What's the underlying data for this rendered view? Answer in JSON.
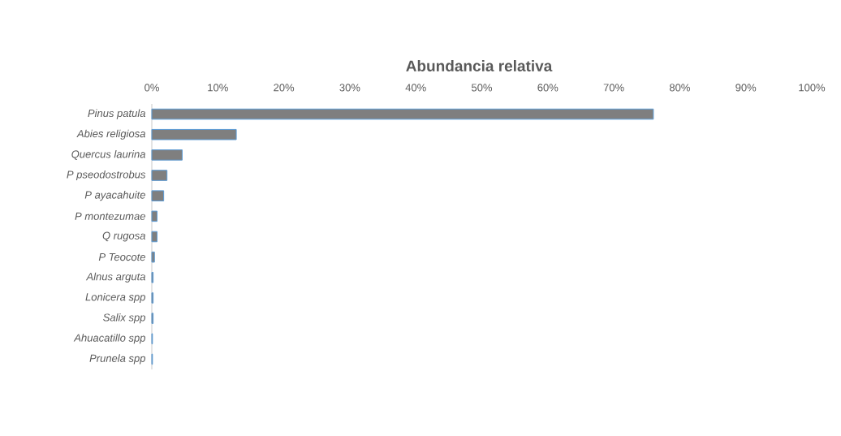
{
  "chart_data": {
    "type": "bar",
    "orientation": "horizontal",
    "title": "Abundancia relativa",
    "categories": [
      "*Pinus patula*",
      "*Abies religiosa*",
      "*Quercus laurina*",
      "*P pseodostrobus*",
      "*P ayacahuite*",
      "*P montezumae*",
      "*Q rugosa*",
      "*P Teocote*",
      "*Alnus arguta*",
      "*Lonicera spp*",
      "*Salix spp*",
      "*Ahuacatillo spp*",
      "*Prunela spp*"
    ],
    "values": [
      76.0,
      12.8,
      4.6,
      2.3,
      1.8,
      0.8,
      0.8,
      0.4,
      0.2,
      0.2,
      0.2,
      0.1,
      0.1
    ],
    "color": "#7f7f7f",
    "xlim": [
      0,
      100
    ],
    "xticks": [
      {
        "value": 0,
        "label": "0%"
      },
      {
        "value": 10,
        "label": "10%"
      },
      {
        "value": 20,
        "label": "20%"
      },
      {
        "value": 30,
        "label": "30%"
      },
      {
        "value": 40,
        "label": "40%"
      },
      {
        "value": 50,
        "label": "50%"
      },
      {
        "value": 60,
        "label": "60%"
      },
      {
        "value": 70,
        "label": "70%"
      },
      {
        "value": 80,
        "label": "80%"
      },
      {
        "value": 90,
        "label": "90%"
      },
      {
        "value": 100,
        "label": "100%"
      }
    ],
    "grid": false
  }
}
